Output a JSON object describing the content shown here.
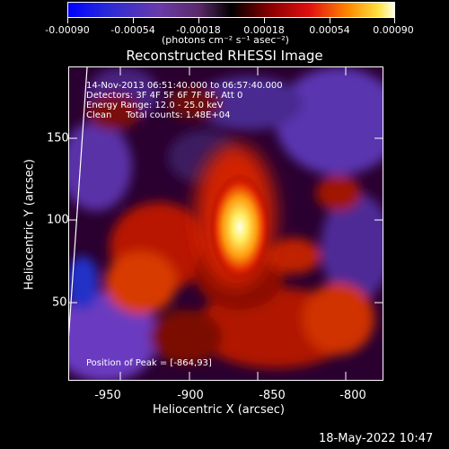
{
  "colorbar": {
    "tick_labels": [
      "-0.00090",
      "-0.00054",
      "-0.00018",
      "0.00018",
      "0.00054",
      "0.00090"
    ],
    "units": "(photons cm⁻² s⁻¹ asec⁻²)"
  },
  "plot": {
    "title": "Reconstructed RHESSI Image",
    "info_line1": "14-Nov-2013 06:51:40.000 to 06:57:40.000",
    "info_line2": "Detectors: 3F 4F 5F 6F 7F 8F, Att 0",
    "info_line3": "Energy Range: 12.0 - 25.0 keV",
    "info_line4": "Clean     Total counts: 1.48E+04",
    "peak_label": "Position of Peak = [-864,93]",
    "xlabel": "Heliocentric X (arcsec)",
    "ylabel": "Heliocentric Y (arcsec)",
    "x_ticks": [
      "-950",
      "-900",
      "-850",
      "-800"
    ],
    "y_ticks": [
      "150",
      "100",
      "50"
    ]
  },
  "footer": {
    "timestamp": "18-May-2022 10:47"
  }
}
